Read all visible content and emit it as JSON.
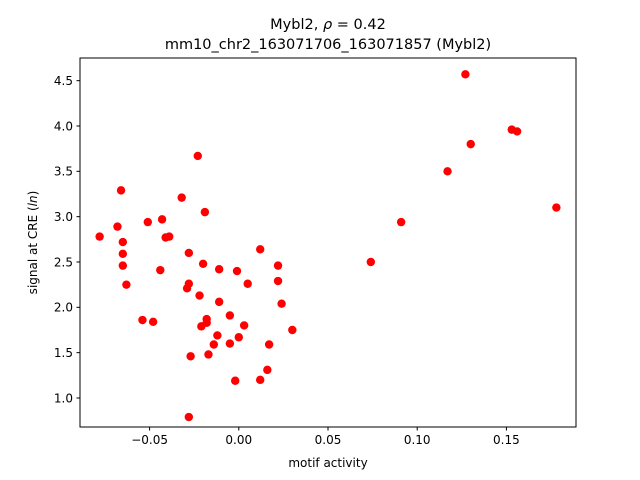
{
  "chart_data": {
    "type": "scatter",
    "title_line1_prefix": "Mybl2, ",
    "title_line1_rho": "ρ",
    "title_line1_suffix": " = 0.42",
    "title_line2": "mm10_chr2_163071706_163071857 (Mybl2)",
    "xlabel": "motif activity",
    "ylabel_prefix": "signal at CRE (",
    "ylabel_italic": "ln",
    "ylabel_suffix": ")",
    "xlim": [
      -0.089,
      0.189
    ],
    "ylim": [
      0.68,
      4.75
    ],
    "x_ticks": [
      -0.05,
      0.0,
      0.05,
      0.1,
      0.15
    ],
    "x_tick_labels": [
      "−0.05",
      "0.00",
      "0.05",
      "0.10",
      "0.15"
    ],
    "y_ticks": [
      1.0,
      1.5,
      2.0,
      2.5,
      3.0,
      3.5,
      4.0,
      4.5
    ],
    "y_tick_labels": [
      "1.0",
      "1.5",
      "2.0",
      "2.5",
      "3.0",
      "3.5",
      "4.0",
      "4.5"
    ],
    "marker_color": "#ff0000",
    "grid": false,
    "points": [
      {
        "x": -0.078,
        "y": 2.78
      },
      {
        "x": -0.068,
        "y": 2.89
      },
      {
        "x": -0.066,
        "y": 3.29
      },
      {
        "x": -0.065,
        "y": 2.72
      },
      {
        "x": -0.065,
        "y": 2.59
      },
      {
        "x": -0.065,
        "y": 2.46
      },
      {
        "x": -0.063,
        "y": 2.25
      },
      {
        "x": -0.054,
        "y": 1.86
      },
      {
        "x": -0.051,
        "y": 2.94
      },
      {
        "x": -0.048,
        "y": 1.84
      },
      {
        "x": -0.044,
        "y": 2.41
      },
      {
        "x": -0.043,
        "y": 2.97
      },
      {
        "x": -0.041,
        "y": 2.77
      },
      {
        "x": -0.039,
        "y": 2.78
      },
      {
        "x": -0.032,
        "y": 3.21
      },
      {
        "x": -0.029,
        "y": 2.21
      },
      {
        "x": -0.028,
        "y": 2.6
      },
      {
        "x": -0.028,
        "y": 2.26
      },
      {
        "x": -0.028,
        "y": 0.79
      },
      {
        "x": -0.027,
        "y": 1.46
      },
      {
        "x": -0.023,
        "y": 3.67
      },
      {
        "x": -0.022,
        "y": 2.13
      },
      {
        "x": -0.021,
        "y": 1.79
      },
      {
        "x": -0.02,
        "y": 2.48
      },
      {
        "x": -0.019,
        "y": 3.05
      },
      {
        "x": -0.018,
        "y": 1.83
      },
      {
        "x": -0.018,
        "y": 1.87
      },
      {
        "x": -0.017,
        "y": 1.48
      },
      {
        "x": -0.014,
        "y": 1.59
      },
      {
        "x": -0.012,
        "y": 1.69
      },
      {
        "x": -0.011,
        "y": 2.42
      },
      {
        "x": -0.011,
        "y": 2.06
      },
      {
        "x": -0.005,
        "y": 1.6
      },
      {
        "x": -0.005,
        "y": 1.91
      },
      {
        "x": -0.002,
        "y": 1.19
      },
      {
        "x": -0.001,
        "y": 2.4
      },
      {
        "x": 0.0,
        "y": 1.67
      },
      {
        "x": 0.003,
        "y": 1.8
      },
      {
        "x": 0.005,
        "y": 2.26
      },
      {
        "x": 0.012,
        "y": 2.64
      },
      {
        "x": 0.012,
        "y": 1.2
      },
      {
        "x": 0.016,
        "y": 1.31
      },
      {
        "x": 0.017,
        "y": 1.59
      },
      {
        "x": 0.022,
        "y": 2.46
      },
      {
        "x": 0.022,
        "y": 2.29
      },
      {
        "x": 0.024,
        "y": 2.04
      },
      {
        "x": 0.03,
        "y": 1.75
      },
      {
        "x": 0.074,
        "y": 2.5
      },
      {
        "x": 0.091,
        "y": 2.94
      },
      {
        "x": 0.117,
        "y": 3.5
      },
      {
        "x": 0.127,
        "y": 4.57
      },
      {
        "x": 0.13,
        "y": 3.8
      },
      {
        "x": 0.153,
        "y": 3.96
      },
      {
        "x": 0.156,
        "y": 3.94
      },
      {
        "x": 0.178,
        "y": 3.1
      }
    ]
  }
}
